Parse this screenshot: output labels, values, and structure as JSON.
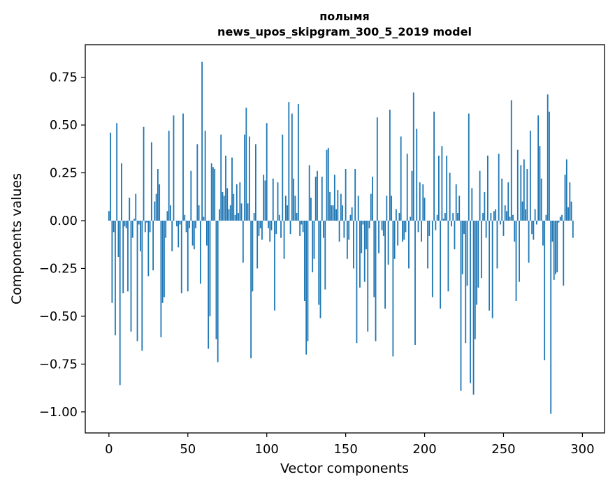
{
  "chart_data": {
    "type": "bar",
    "title_line1": "полымя",
    "title_line2": "news_upos_skipgram_300_5_2019 model",
    "xlabel": "Vector components",
    "ylabel": "Components values",
    "xlim": [
      -15,
      314
    ],
    "ylim": [
      -1.11,
      0.92
    ],
    "xticks": [
      0,
      50,
      100,
      150,
      200,
      250,
      300
    ],
    "yticks": [
      0.75,
      0.5,
      0.25,
      0.0,
      -0.25,
      -0.5,
      -0.75,
      -1.0
    ],
    "ytick_labels": [
      "0.75",
      "0.50",
      "0.25",
      "0.00",
      "−0.25",
      "−0.50",
      "−0.75",
      "−1.00"
    ],
    "xtick_labels": [
      "0",
      "50",
      "100",
      "150",
      "200",
      "250",
      "300"
    ],
    "bar_color": "#1f77b4",
    "values": [
      0.05,
      0.46,
      -0.43,
      -0.06,
      -0.6,
      0.51,
      -0.19,
      -0.86,
      0.3,
      -0.38,
      -0.03,
      -0.04,
      -0.37,
      0.12,
      -0.58,
      -0.09,
      0.01,
      0.14,
      -0.63,
      -0.02,
      -0.16,
      -0.68,
      0.49,
      -0.06,
      -0.01,
      -0.29,
      -0.06,
      0.41,
      -0.26,
      0.1,
      0.14,
      0.27,
      0.19,
      -0.61,
      -0.43,
      -0.4,
      -0.09,
      0.05,
      0.47,
      0.08,
      -0.16,
      0.55,
      0.0,
      -0.03,
      -0.14,
      -0.02,
      -0.38,
      0.56,
      0.03,
      -0.06,
      -0.37,
      -0.04,
      0.26,
      -0.13,
      -0.15,
      -0.04,
      0.4,
      0.08,
      -0.33,
      0.83,
      0.02,
      0.47,
      -0.13,
      -0.67,
      -0.5,
      0.3,
      0.28,
      0.27,
      -0.62,
      -0.74,
      0.06,
      0.45,
      0.15,
      0.13,
      0.34,
      0.17,
      0.06,
      0.08,
      0.33,
      0.14,
      0.03,
      0.19,
      0.04,
      0.2,
      0.09,
      -0.22,
      0.45,
      0.59,
      0.09,
      0.44,
      -0.72,
      -0.37,
      0.04,
      0.4,
      -0.25,
      -0.08,
      -0.04,
      -0.1,
      0.24,
      0.21,
      0.51,
      -0.04,
      -0.11,
      -0.05,
      0.22,
      -0.47,
      -0.07,
      0.2,
      0.03,
      -0.09,
      0.45,
      -0.2,
      0.13,
      0.08,
      0.62,
      -0.07,
      0.56,
      0.22,
      0.13,
      0.04,
      0.61,
      -0.08,
      -0.02,
      -0.06,
      -0.42,
      -0.7,
      -0.63,
      0.29,
      0.12,
      -0.27,
      -0.2,
      0.23,
      0.26,
      -0.44,
      -0.51,
      0.23,
      -0.09,
      -0.36,
      0.37,
      0.38,
      0.15,
      0.08,
      0.08,
      0.24,
      0.06,
      0.16,
      -0.11,
      0.14,
      0.08,
      -0.09,
      0.27,
      -0.2,
      -0.1,
      0.03,
      0.07,
      -0.25,
      0.27,
      -0.64,
      0.13,
      -0.35,
      -0.17,
      -0.02,
      -0.32,
      -0.15,
      -0.58,
      -0.04,
      0.14,
      0.23,
      -0.4,
      -0.63,
      0.54,
      -0.17,
      0.0,
      -0.05,
      -0.08,
      -0.46,
      0.13,
      -0.23,
      0.58,
      0.13,
      -0.71,
      -0.2,
      0.06,
      -0.13,
      0.04,
      0.44,
      -0.11,
      -0.1,
      -0.06,
      0.35,
      -0.25,
      0.02,
      0.26,
      0.67,
      -0.65,
      0.48,
      -0.06,
      0.2,
      -0.11,
      0.19,
      0.12,
      0.0,
      -0.25,
      -0.08,
      0.0,
      -0.4,
      0.57,
      -0.05,
      0.03,
      0.34,
      -0.46,
      0.39,
      0.01,
      0.04,
      0.34,
      -0.37,
      0.25,
      -0.03,
      0.04,
      -0.15,
      0.19,
      0.04,
      0.13,
      -0.89,
      -0.28,
      -0.07,
      -0.64,
      -0.34,
      0.56,
      -0.85,
      0.17,
      -0.91,
      -0.62,
      -0.44,
      -0.35,
      0.26,
      -0.3,
      0.04,
      0.15,
      -0.09,
      0.34,
      -0.47,
      0.04,
      -0.51,
      0.05,
      0.06,
      -0.25,
      0.35,
      -0.02,
      0.22,
      -0.08,
      0.08,
      0.05,
      0.2,
      0.02,
      0.63,
      0.03,
      -0.11,
      -0.42,
      0.37,
      -0.32,
      0.29,
      0.1,
      0.32,
      0.06,
      0.27,
      -0.22,
      0.47,
      -0.07,
      -0.1,
      0.06,
      -0.02,
      0.55,
      0.39,
      0.22,
      -0.13,
      -0.73,
      0.03,
      0.66,
      0.57,
      -1.01,
      -0.11,
      -0.31,
      -0.28,
      -0.27,
      -0.01,
      0.02,
      0.03,
      -0.34,
      0.24,
      0.32,
      0.07,
      0.2,
      0.1,
      -0.09
    ]
  }
}
